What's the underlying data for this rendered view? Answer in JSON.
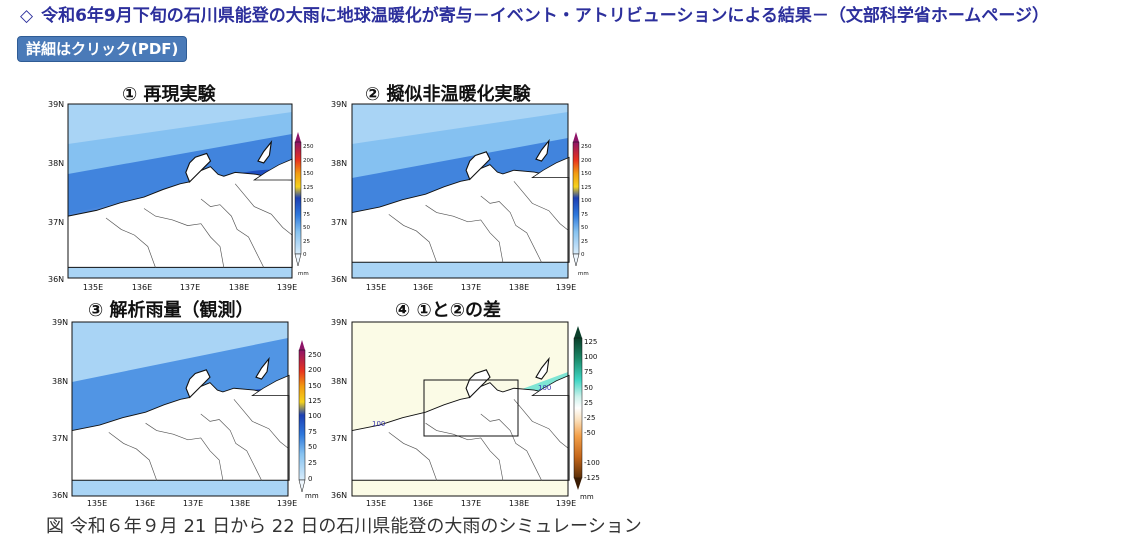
{
  "header": {
    "diamond": "◇",
    "title": "令和6年9月下旬の石川県能登の大雨に地球温暖化が寄与－イベント・アトリビューションによる結果－（文部科学省ホームページ）"
  },
  "pdf_button": {
    "label": "詳細はクリック(PDF)"
  },
  "figure": {
    "panels": [
      {
        "title": "① 再現実験"
      },
      {
        "title": "② 擬似非温暖化実験"
      },
      {
        "title": "③ 解析雨量（観測）"
      },
      {
        "title": "④ ①と②の差"
      }
    ],
    "lat_labels": [
      "39N",
      "38N",
      "37N",
      "36N"
    ],
    "lon_labels": [
      "135E",
      "136E",
      "137E",
      "138E",
      "139E"
    ],
    "rain_scale": {
      "ticks": [
        "250",
        "200",
        "150",
        "125",
        "100",
        "75",
        "50",
        "25",
        "0"
      ],
      "unit": "mm"
    },
    "diff_scale": {
      "ticks": [
        "125",
        "100",
        "75",
        "50",
        "25",
        "-25",
        "-50",
        "-100",
        "-125"
      ],
      "unit": "mm"
    },
    "contour_label": "100",
    "caption": "図 令和６年９月 21 日から 22 日の石川県能登の大雨のシミュレーション"
  },
  "colors": {
    "header_text": "#2c2f9c",
    "button_bg": "#4a7ab8",
    "sea_light": "#a9d4f5",
    "rain_mid": "#2b6fd6",
    "rain_high": "#f2c21a",
    "rain_peak": "#e8321e",
    "land": "#ffffff",
    "diff_bg": "#fbfbe6"
  }
}
